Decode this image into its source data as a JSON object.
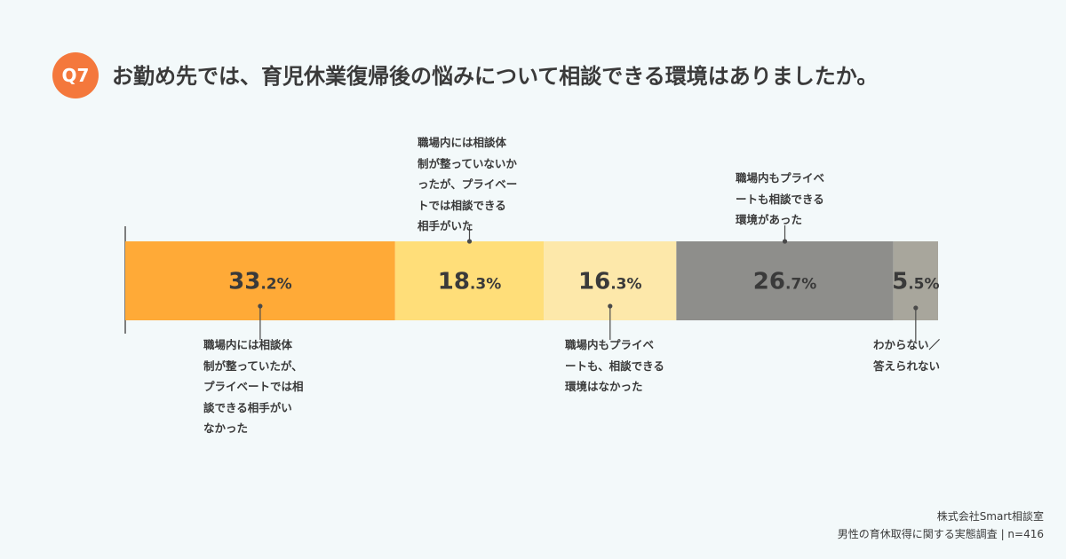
{
  "header": {
    "badge": "Q7",
    "title": "お勤め先では、育児休業復帰後の悩みについて相談できる環境はありましたか。"
  },
  "chart_data": {
    "type": "bar",
    "orientation": "horizontal-stacked-100",
    "series": [
      {
        "label": "職場内には相談体制が整っていたが、プライベートでは相談できる相手がいなかった",
        "value": 33.2,
        "value_label": "33.2%",
        "color": "#ffaa37",
        "text_color": "#3a3a3a"
      },
      {
        "label": "職場内には相談体制が整っていないかったが、プライベートでは相談できる相手がいた",
        "value": 18.3,
        "value_label": "18.3%",
        "color": "#ffde79",
        "text_color": "#3a3a3a"
      },
      {
        "label": "職場内もプライベートも、相談できる環境はなかった",
        "value": 16.3,
        "value_label": "16.3%",
        "color": "#fde8aa",
        "text_color": "#3a3a3a"
      },
      {
        "label": "職場内もプライベートも相談できる環境があった",
        "value": 26.7,
        "value_label": "26.7%",
        "color": "#8e8e8b",
        "text_color": "#3a3a3a"
      },
      {
        "label": "わからない／答えられない",
        "value": 5.5,
        "value_label": "5.5%",
        "color": "#a8a69c",
        "text_color": "#3a3a3a"
      }
    ]
  },
  "labels": {
    "seg0": "職場内には相談体\n制が整っていたが、\nプライベートでは相\n談できる相手がい\nなかった",
    "seg1": "職場内には相談体\n制が整っていないか\nったが、プライベー\nトでは相談できる\n相手がいた",
    "seg2": "職場内もプライベ\nートも、相談できる\n環境はなかった",
    "seg3": "職場内もプライベ\nートも相談できる\n環境があった",
    "seg4": "わからない／\n答えられない"
  },
  "source": {
    "company": "株式会社Smart相談室",
    "survey": "男性の育休取得に関する実態調査 | n=416"
  }
}
